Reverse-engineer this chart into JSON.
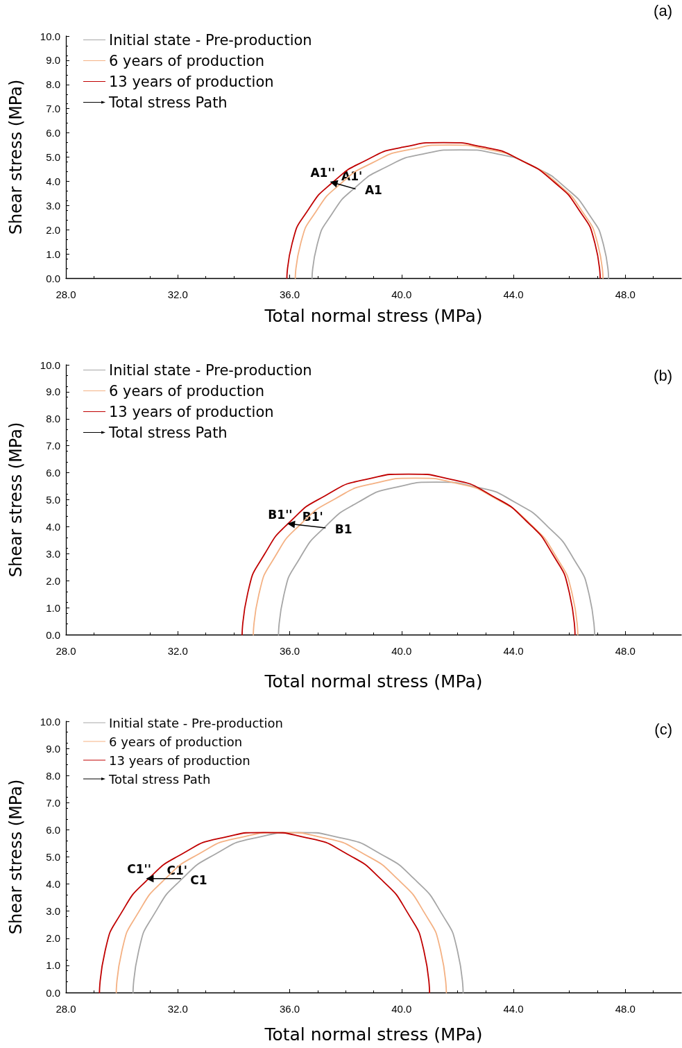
{
  "chart_data": [
    {
      "type": "line",
      "xlabel": "Total normal stress (MPa)",
      "ylabel": "Shear stress (MPa)",
      "xlim": [
        28,
        50
      ],
      "xticks": [
        {
          "value": 28,
          "label": "28.0"
        },
        {
          "value": 32,
          "label": "32.0"
        },
        {
          "value": 36,
          "label": "36.0"
        },
        {
          "value": 40,
          "label": "40.0"
        },
        {
          "value": 44,
          "label": "44.0"
        },
        {
          "value": 48,
          "label": "48.0"
        }
      ],
      "ylim": [
        0,
        10
      ],
      "yticks": [
        {
          "value": 0,
          "label": "0.0"
        },
        {
          "value": 1,
          "label": "1.0"
        },
        {
          "value": 2,
          "label": "2.0"
        },
        {
          "value": 3,
          "label": "3.0"
        },
        {
          "value": 4,
          "label": "4.0"
        },
        {
          "value": 5,
          "label": "5.0"
        },
        {
          "value": 6,
          "label": "6.0"
        },
        {
          "value": 7,
          "label": "7.0"
        },
        {
          "value": 8,
          "label": "8.0"
        },
        {
          "value": 9,
          "label": "9.0"
        },
        {
          "value": 10,
          "label": "10.0"
        }
      ],
      "grid": false,
      "legend": "top left",
      "marker": "none",
      "series": [
        {
          "name": "Initial state - Pre-production",
          "color": "#a6a6a6",
          "x": [
            36.8,
            36.98,
            37.51,
            38.35,
            39.45,
            40.73,
            42.1,
            43.47,
            44.75,
            45.85,
            46.69,
            47.22,
            47.4
          ],
          "values": [
            0,
            1.37,
            2.65,
            3.75,
            4.59,
            5.12,
            5.3,
            5.12,
            4.59,
            3.75,
            2.65,
            1.37,
            0
          ]
        },
        {
          "name": "6 years of production",
          "color": "#f4b183",
          "x": [
            36.2,
            36.39,
            36.94,
            37.81,
            38.95,
            40.28,
            41.7,
            43.12,
            44.45,
            45.59,
            46.46,
            47.01,
            47.2
          ],
          "values": [
            0,
            1.42,
            2.75,
            3.89,
            4.76,
            5.31,
            5.5,
            5.31,
            4.76,
            3.89,
            2.75,
            1.42,
            0
          ]
        },
        {
          "name": "13 years of production",
          "color": "#c00000",
          "x": [
            35.9,
            36.09,
            36.65,
            37.54,
            38.7,
            40.05,
            41.5,
            42.95,
            44.3,
            45.46,
            46.35,
            46.91,
            47.1
          ],
          "values": [
            0,
            1.45,
            2.8,
            3.96,
            4.85,
            5.41,
            5.6,
            5.41,
            4.85,
            3.96,
            2.8,
            1.45,
            0
          ]
        },
        {
          "name": "Total stress Path",
          "color": "#000000",
          "marker": "triangle",
          "x": [
            38.34,
            37.57
          ],
          "values": [
            3.69,
            3.94
          ]
        }
      ],
      "annotations": [
        "(a)",
        {
          "text": "A1",
          "x": 38.34,
          "y": 3.69
        },
        {
          "text": "A1'",
          "x": 37.8,
          "y": 3.87
        },
        {
          "text": "A1''",
          "x": 37.57,
          "y": 3.94
        }
      ]
    },
    {
      "type": "line",
      "xlabel": "Total normal stress (MPa)",
      "ylabel": "Shear stress (MPa)",
      "xlim": [
        28,
        50
      ],
      "xticks": [
        {
          "value": 28,
          "label": "28.0"
        },
        {
          "value": 32,
          "label": "32.0"
        },
        {
          "value": 36,
          "label": "36.0"
        },
        {
          "value": 40,
          "label": "40.0"
        },
        {
          "value": 44,
          "label": "44.0"
        },
        {
          "value": 48,
          "label": "48.0"
        }
      ],
      "ylim": [
        0,
        10
      ],
      "yticks": [
        {
          "value": 0,
          "label": "0.0"
        },
        {
          "value": 1,
          "label": "1.0"
        },
        {
          "value": 2,
          "label": "2.0"
        },
        {
          "value": 3,
          "label": "3.0"
        },
        {
          "value": 4,
          "label": "4.0"
        },
        {
          "value": 5,
          "label": "5.0"
        },
        {
          "value": 6,
          "label": "6.0"
        },
        {
          "value": 7,
          "label": "7.0"
        },
        {
          "value": 8,
          "label": "8.0"
        },
        {
          "value": 9,
          "label": "9.0"
        },
        {
          "value": 10,
          "label": "10.0"
        }
      ],
      "grid": false,
      "legend": "top left",
      "marker": "none",
      "series": [
        {
          "name": "Initial state - Pre-production",
          "color": "#a6a6a6",
          "x": [
            35.6,
            35.79,
            36.36,
            37.26,
            38.42,
            39.79,
            41.25,
            42.71,
            44.08,
            45.24,
            46.14,
            46.71,
            46.9
          ],
          "values": [
            0,
            1.46,
            2.83,
            3.99,
            4.89,
            5.46,
            5.65,
            5.46,
            4.89,
            3.99,
            2.83,
            1.46,
            0
          ]
        },
        {
          "name": "6 years of production",
          "color": "#f4b183",
          "x": [
            34.7,
            34.9,
            35.48,
            36.4,
            37.6,
            39,
            40.5,
            42,
            43.4,
            44.6,
            45.52,
            46.1,
            46.3
          ],
          "values": [
            0,
            1.5,
            2.9,
            4.1,
            5.02,
            5.6,
            5.8,
            5.6,
            5.02,
            4.1,
            2.9,
            1.5,
            0
          ]
        },
        {
          "name": "13 years of production",
          "color": "#c00000",
          "x": [
            34.3,
            34.5,
            35.1,
            36.04,
            37.27,
            38.71,
            40.25,
            41.79,
            43.23,
            44.46,
            45.4,
            46,
            46.2
          ],
          "values": [
            0,
            1.54,
            2.98,
            4.21,
            5.15,
            5.75,
            5.95,
            5.75,
            5.15,
            4.21,
            2.98,
            1.54,
            0
          ]
        },
        {
          "name": "Total stress Path",
          "color": "#000000",
          "marker": "triangle",
          "x": [
            37.27,
            36.05
          ],
          "values": [
            3.96,
            4.1
          ]
        }
      ],
      "annotations": [
        "(b)",
        {
          "text": "B1",
          "x": 37.27,
          "y": 3.96
        },
        {
          "text": "B1'",
          "x": 36.4,
          "y": 4.06
        },
        {
          "text": "B1''",
          "x": 36.05,
          "y": 4.1
        }
      ]
    },
    {
      "type": "line",
      "xlabel": "Total normal stress (MPa)",
      "ylabel": "Shear stress (MPa)",
      "xlim": [
        28,
        50
      ],
      "xticks": [
        {
          "value": 28,
          "label": "28.0"
        },
        {
          "value": 32,
          "label": "32.0"
        },
        {
          "value": 36,
          "label": "36.0"
        },
        {
          "value": 40,
          "label": "40.0"
        },
        {
          "value": 44,
          "label": "44.0"
        },
        {
          "value": 48,
          "label": "48.0"
        }
      ],
      "ylim": [
        0,
        10
      ],
      "yticks": [
        {
          "value": 0,
          "label": "0.0"
        },
        {
          "value": 1,
          "label": "1.0"
        },
        {
          "value": 2,
          "label": "2.0"
        },
        {
          "value": 3,
          "label": "3.0"
        },
        {
          "value": 4,
          "label": "4.0"
        },
        {
          "value": 5,
          "label": "5.0"
        },
        {
          "value": 6,
          "label": "6.0"
        },
        {
          "value": 7,
          "label": "7.0"
        },
        {
          "value": 8,
          "label": "8.0"
        },
        {
          "value": 9,
          "label": "9.0"
        },
        {
          "value": 10,
          "label": "10.0"
        }
      ],
      "grid": false,
      "legend": "top left",
      "marker": "none",
      "series": [
        {
          "name": "Initial state - Pre-production",
          "color": "#a6a6a6",
          "x": [
            30.4,
            30.6,
            31.19,
            32.13,
            33.35,
            34.77,
            36.3,
            37.83,
            39.25,
            40.47,
            41.41,
            42,
            42.2
          ],
          "values": [
            0,
            1.53,
            2.95,
            4.17,
            5.11,
            5.7,
            5.9,
            5.7,
            5.11,
            4.17,
            2.95,
            1.53,
            0
          ]
        },
        {
          "name": "6 years of production",
          "color": "#f4b183",
          "x": [
            29.8,
            30,
            30.59,
            31.53,
            32.75,
            34.17,
            35.7,
            37.23,
            38.65,
            39.87,
            40.81,
            41.4,
            41.6
          ],
          "values": [
            0,
            1.53,
            2.95,
            4.17,
            5.11,
            5.7,
            5.9,
            5.7,
            5.11,
            4.17,
            2.95,
            1.53,
            0
          ]
        },
        {
          "name": "13 years of production",
          "color": "#c00000",
          "x": [
            29.2,
            29.4,
            29.99,
            30.93,
            32.15,
            33.57,
            35.1,
            36.63,
            38.05,
            39.27,
            40.21,
            40.8,
            41
          ],
          "values": [
            0,
            1.53,
            2.95,
            4.17,
            5.11,
            5.7,
            5.9,
            5.7,
            5.11,
            4.17,
            2.95,
            1.53,
            0
          ]
        },
        {
          "name": "Total stress Path",
          "color": "#000000",
          "marker": "triangle",
          "x": [
            32.1,
            31
          ],
          "values": [
            4.2,
            4.2
          ]
        }
      ],
      "annotations": [
        "(c)",
        {
          "text": "C1",
          "x": 32.1,
          "y": 4.2
        },
        {
          "text": "C1'",
          "x": 31.56,
          "y": 4.2
        },
        {
          "text": "C1''",
          "x": 31,
          "y": 4.2
        }
      ]
    }
  ]
}
